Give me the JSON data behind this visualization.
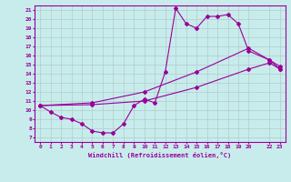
{
  "xlabel": "Windchill (Refroidissement éolien,°C)",
  "bg_color": "#c8ecec",
  "line_color": "#990099",
  "grid_color": "#b0cccc",
  "xlim": [
    -0.5,
    23.5
  ],
  "ylim": [
    6.5,
    21.5
  ],
  "xticks": [
    0,
    1,
    2,
    3,
    4,
    5,
    6,
    7,
    8,
    9,
    10,
    11,
    12,
    13,
    14,
    15,
    16,
    17,
    18,
    19,
    20,
    22,
    23
  ],
  "yticks": [
    7,
    8,
    9,
    10,
    11,
    12,
    13,
    14,
    15,
    16,
    17,
    18,
    19,
    20,
    21
  ],
  "line1_x": [
    0,
    1,
    2,
    3,
    4,
    5,
    6,
    7,
    8,
    9,
    10,
    11,
    12,
    13,
    14,
    15,
    16,
    17,
    18,
    19,
    20,
    22,
    23
  ],
  "line1_y": [
    10.5,
    9.8,
    9.2,
    9.0,
    8.5,
    7.7,
    7.5,
    7.5,
    8.5,
    10.5,
    11.2,
    10.8,
    14.2,
    21.2,
    19.5,
    19.0,
    20.3,
    20.3,
    20.5,
    19.5,
    16.5,
    15.5,
    14.5
  ],
  "line2_x": [
    0,
    5,
    10,
    15,
    20,
    22,
    23
  ],
  "line2_y": [
    10.5,
    10.6,
    11.0,
    12.5,
    14.5,
    15.2,
    14.5
  ],
  "line3_x": [
    0,
    5,
    10,
    15,
    20,
    22,
    23
  ],
  "line3_y": [
    10.5,
    10.8,
    12.0,
    14.2,
    16.8,
    15.5,
    14.8
  ],
  "marker": "D",
  "markersize": 2,
  "linewidth": 0.8
}
